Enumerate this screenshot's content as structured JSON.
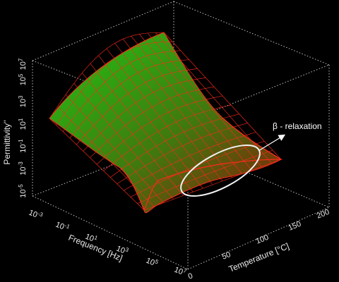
{
  "chart_data": {
    "type": "surface3d",
    "title": "",
    "x_axis": {
      "label": "Frequency [Hz]",
      "scale": "log",
      "range_log10": [
        -3,
        7
      ],
      "tick_labels": [
        {
          "base": "10",
          "exp": "-3"
        },
        {
          "base": "10",
          "exp": "-1"
        },
        {
          "base": "10",
          "exp": "1"
        },
        {
          "base": "10",
          "exp": "3"
        },
        {
          "base": "10",
          "exp": "5"
        },
        {
          "base": "10",
          "exp": "7"
        }
      ]
    },
    "y_axis": {
      "label": "Temperature [°C]",
      "scale": "linear",
      "range": [
        0,
        200
      ],
      "tick_labels": [
        "0",
        "50",
        "100",
        "150",
        "200"
      ]
    },
    "z_axis": {
      "label": "Permittivity''",
      "scale": "log",
      "range_log10": [
        -5,
        7
      ],
      "tick_labels": [
        {
          "base": "10",
          "exp": "-5"
        },
        {
          "base": "10",
          "exp": "-3"
        },
        {
          "base": "10",
          "exp": "-1"
        },
        {
          "base": "10",
          "exp": "1"
        },
        {
          "base": "10",
          "exp": "3"
        },
        {
          "base": "10",
          "exp": "5"
        },
        {
          "base": "10",
          "exp": "7"
        }
      ]
    },
    "surface": {
      "description_values_log10": "surface height is high at low frequency / high temperature and falls toward high frequency",
      "corner_values": [
        {
          "freq_log10": -3,
          "temp_c": 200,
          "perm_log10": 6.2
        },
        {
          "freq_log10": -3,
          "temp_c": 0,
          "perm_log10": -1.5
        },
        {
          "freq_log10": 7,
          "temp_c": 0,
          "perm_log10": -3.8
        },
        {
          "freq_log10": 7,
          "temp_c": 200,
          "perm_log10": -2.2
        }
      ]
    },
    "annotations": [
      {
        "text": "β - relaxation",
        "shape": "ellipse-with-arrow"
      }
    ],
    "grid": true,
    "box": "dotted",
    "colors": {
      "background": "#000000",
      "surface_high": "#22c414",
      "surface_low": "#8a1a08",
      "mesh_line": "#ff2a1a",
      "box_line": "#bfbfbf",
      "text": "#e8e8e8",
      "annotation": "#ffffff"
    }
  }
}
